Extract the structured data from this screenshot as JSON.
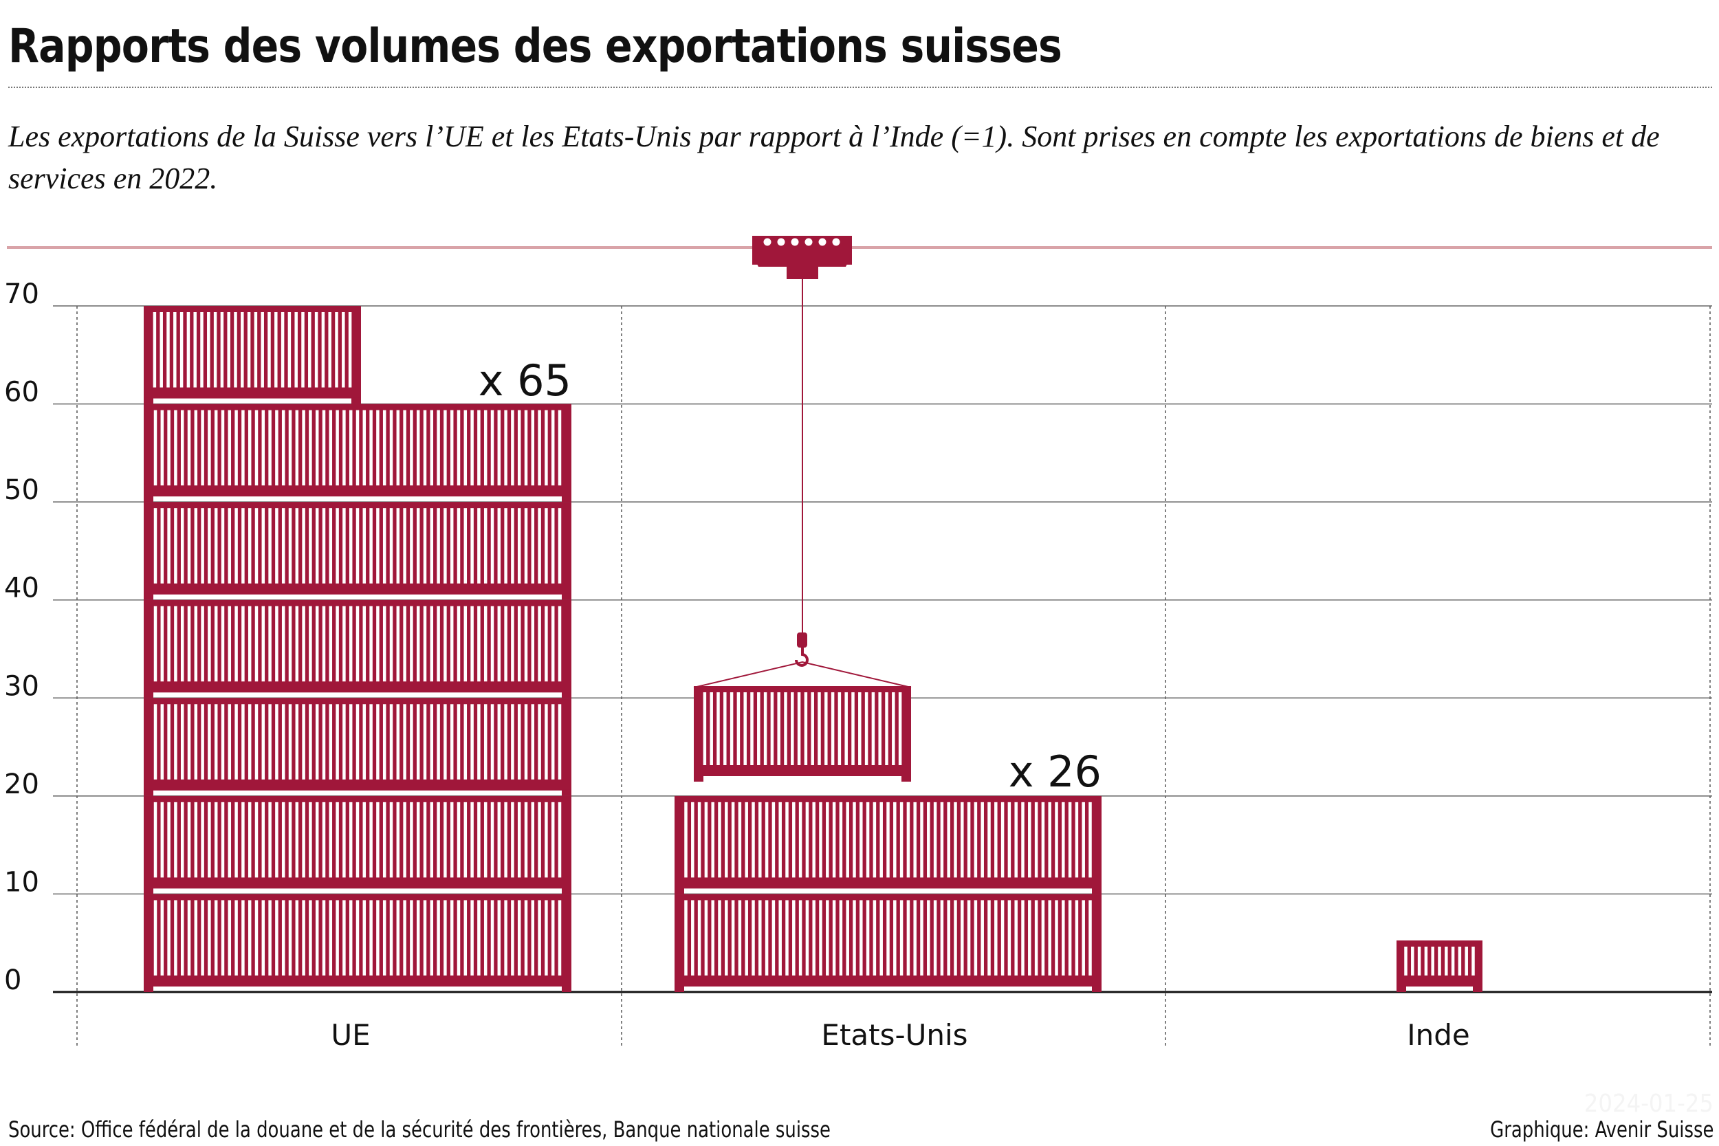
{
  "title": "Rapports des volumes des exportations suisses",
  "subtitle": "Les exportations de la Suisse vers l’UE et les Etats-Unis par rapport à l’Inde (=1). Sont prises en compte les exportations de biens et de services en 2022.",
  "source": "Source: Office fédéral de la douane et de la sécurité des frontières, Banque nationale suisse",
  "credit": "Graphique: Avenir Suisse",
  "date": "2024-01-25",
  "colors": {
    "container": "#a0173a",
    "reference_line": "#d9a3a8"
  },
  "chart_data": {
    "type": "bar",
    "title": "Rapports des volumes des exportations suisses",
    "categories": [
      "UE",
      "Etats-Unis",
      "Inde"
    ],
    "values": [
      65,
      26,
      1
    ],
    "labels": [
      "x 65",
      "x 26",
      ""
    ],
    "ylim": [
      0,
      70
    ],
    "yticks": [
      "0",
      "10",
      "20",
      "30",
      "40",
      "50",
      "60",
      "70"
    ],
    "grid": true,
    "style": "pictogram of shipping containers, each container = 10 units (Inde = 1)"
  }
}
